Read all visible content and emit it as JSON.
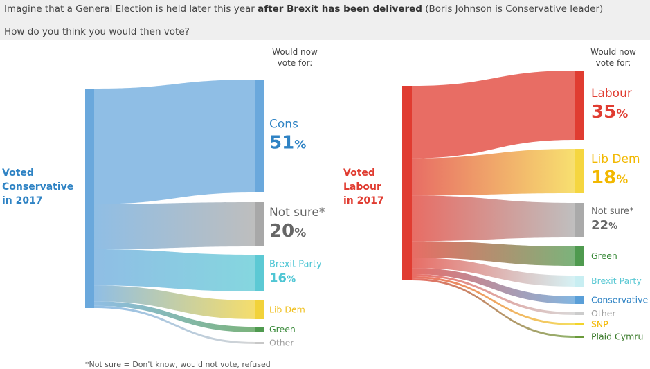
{
  "header": {
    "question_prefix": "Imagine that a General Election is held later this year ",
    "question_bold": "after Brexit has been delivered",
    "question_suffix": " (Boris Johnson is Conservative leader)",
    "question2": "How do you think you would then vote?"
  },
  "footnote": "*Not sure = Don't know, would not vote, refused",
  "colors": {
    "conservative_blue": "#6aa8dc",
    "labour_red": "#e03c31",
    "cons_label": "#2f83c4",
    "notsure_grey": "#9b9b9b",
    "brexit_teal": "#4fc6d4",
    "libdem_yellow": "#f3c51e",
    "green_party": "#4f9a4f",
    "other_grey": "#c8c8c8",
    "snp_yellow": "#f2d42b",
    "plaid_green": "#6a9a3a"
  },
  "chart_data": [
    {
      "type": "sankey",
      "source": {
        "line1": "Voted",
        "line2": "Conservative",
        "line3": "in 2017"
      },
      "target_header": {
        "line1": "Would now",
        "line2": "vote for:"
      },
      "targets": [
        {
          "key": "cons",
          "name": "Cons",
          "value": 51,
          "pct": "51%",
          "color": "#6aa8dc",
          "text_color": "#2f83c4",
          "size": "large"
        },
        {
          "key": "notsure",
          "name": "Not sure*",
          "value": 20,
          "pct": "20%",
          "color": "#a8a8a8",
          "text_color": "#666666",
          "size": "large"
        },
        {
          "key": "brexit",
          "name": "Brexit Party",
          "value": 16,
          "pct": "16%",
          "color": "#5cc9d4",
          "text_color": "#4fc6d4",
          "size": "medium"
        },
        {
          "key": "libdem",
          "name": "Lib Dem",
          "value": 7,
          "pct": "",
          "color": "#f2d23a",
          "text_color": "#f0c020",
          "size": "small"
        },
        {
          "key": "green",
          "name": "Green",
          "value": 2,
          "pct": "",
          "color": "#4f9a4f",
          "text_color": "#3a8a3a",
          "size": "small"
        },
        {
          "key": "other",
          "name": "Other",
          "value": 1,
          "pct": "",
          "color": "#c8c8c8",
          "text_color": "#a0a0a0",
          "size": "small"
        }
      ]
    },
    {
      "type": "sankey",
      "source": {
        "line1": "Voted",
        "line2": "Labour",
        "line3": "in 2017"
      },
      "target_header": {
        "line1": "Would now",
        "line2": "vote for:"
      },
      "targets": [
        {
          "key": "labour",
          "name": "Labour",
          "value": 35,
          "pct": "35%",
          "color": "#e03c31",
          "text_color": "#e03c31",
          "size": "large"
        },
        {
          "key": "libdem",
          "name": "Lib Dem",
          "value": 18,
          "pct": "18%",
          "color": "#f5d640",
          "text_color": "#f2b800",
          "size": "large"
        },
        {
          "key": "notsure",
          "name": "Not sure*",
          "value": 22,
          "pct": "22%",
          "color": "#aaaaaa",
          "text_color": "#666666",
          "size": "medium"
        },
        {
          "key": "green",
          "name": "Green",
          "value": 8,
          "pct": "",
          "color": "#4f9a4f",
          "text_color": "#3a8a3a",
          "size": "small"
        },
        {
          "key": "brexit",
          "name": "Brexit Party",
          "value": 5,
          "pct": "",
          "color": "#c8eef2",
          "text_color": "#5cc9d4",
          "size": "small"
        },
        {
          "key": "conservative",
          "name": "Conservative",
          "value": 3,
          "pct": "",
          "color": "#5a9fd8",
          "text_color": "#2f83c4",
          "size": "small"
        },
        {
          "key": "other",
          "name": "Other",
          "value": 1,
          "pct": "",
          "color": "#cccccc",
          "text_color": "#a0a0a0",
          "size": "small"
        },
        {
          "key": "snp",
          "name": "SNP",
          "value": 1,
          "pct": "",
          "color": "#f2d42b",
          "text_color": "#f2b800",
          "size": "small"
        },
        {
          "key": "plaid",
          "name": "Plaid Cymru",
          "value": 1,
          "pct": "",
          "color": "#6a9a3a",
          "text_color": "#3a7a2a",
          "size": "small"
        }
      ]
    }
  ]
}
